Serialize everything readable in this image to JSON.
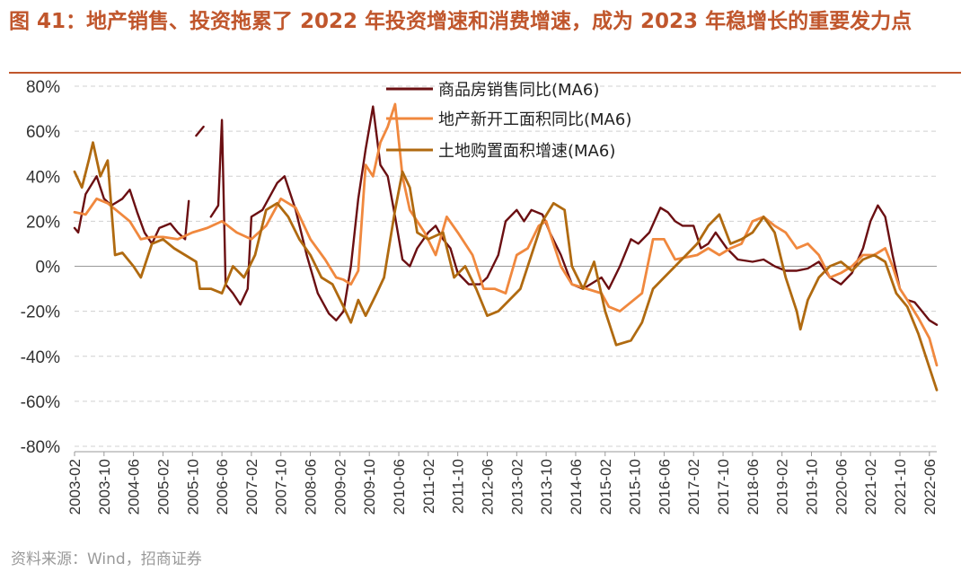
{
  "header": {
    "title": "图 41：地产销售、投资拖累了 2022 年投资增速和消费增速，成为 2023 年稳增长的重要发力点"
  },
  "footer": {
    "source": "资料来源：Wind，招商证券"
  },
  "colors": {
    "title": "#c0562c",
    "grid": "#d0d0d0",
    "axis": "#999999"
  },
  "chart_data": {
    "type": "line",
    "title": "地产销售、投资拖累了 2022 年投资增速和消费增速，成为 2023 年稳增长的重要发力点",
    "xlabel": "",
    "ylabel": "",
    "ylim": [
      -80,
      80
    ],
    "yticks": [
      80,
      60,
      40,
      20,
      0,
      -20,
      -40,
      -60,
      -80
    ],
    "ytick_labels": [
      "80%",
      "60%",
      "40%",
      "20%",
      "0%",
      "-20%",
      "-40%",
      "-60%",
      "-80%"
    ],
    "x_start": "2003-02",
    "x_end": "2022-08",
    "x_tick_labels": [
      "2003-02",
      "2003-10",
      "2004-06",
      "2005-02",
      "2005-10",
      "2006-06",
      "2007-02",
      "2007-10",
      "2008-06",
      "2009-02",
      "2009-10",
      "2010-06",
      "2011-02",
      "2011-10",
      "2012-06",
      "2013-02",
      "2013-10",
      "2014-06",
      "2015-02",
      "2015-10",
      "2016-06",
      "2017-02",
      "2017-10",
      "2018-06",
      "2019-02",
      "2019-10",
      "2020-06",
      "2021-02",
      "2021-10",
      "2022-06"
    ],
    "grid": true,
    "legend": "top-center",
    "series": [
      {
        "name": "商品房销售同比(MA6)",
        "color": "#6b0f12",
        "points": [
          [
            "2003-02",
            17
          ],
          [
            "2003-03",
            15
          ],
          [
            "2003-05",
            32
          ],
          [
            "2003-08",
            40
          ],
          [
            "2003-10",
            30
          ],
          [
            "2003-12",
            27
          ],
          [
            "2004-03",
            30
          ],
          [
            "2004-05",
            34
          ],
          [
            "2004-07",
            24
          ],
          [
            "2004-09",
            15
          ],
          [
            "2004-11",
            10
          ],
          [
            "2005-01",
            17
          ],
          [
            "2005-04",
            19
          ],
          [
            "2005-06",
            15
          ],
          [
            "2005-08",
            12
          ],
          [
            "2005-09",
            29
          ],
          [
            null,
            null
          ],
          [
            "2005-11",
            58
          ],
          [
            "2006-01",
            62
          ],
          [
            null,
            null
          ],
          [
            "2006-03",
            22
          ],
          [
            "2006-05",
            27
          ],
          [
            "2006-06",
            65
          ],
          [
            "2006-07",
            -8
          ],
          [
            "2006-09",
            -12
          ],
          [
            "2006-11",
            -17
          ],
          [
            "2007-01",
            -10
          ],
          [
            "2007-02",
            22
          ],
          [
            "2007-05",
            25
          ],
          [
            "2007-09",
            37
          ],
          [
            "2007-11",
            40
          ],
          [
            "2008-02",
            25
          ],
          [
            "2008-05",
            5
          ],
          [
            "2008-08",
            -12
          ],
          [
            "2008-11",
            -21
          ],
          [
            "2009-01",
            -24
          ],
          [
            "2009-03",
            -20
          ],
          [
            "2009-05",
            0
          ],
          [
            "2009-07",
            30
          ],
          [
            "2009-09",
            52
          ],
          [
            "2009-11",
            71
          ],
          [
            "2010-01",
            45
          ],
          [
            "2010-03",
            40
          ],
          [
            "2010-05",
            22
          ],
          [
            "2010-07",
            3
          ],
          [
            "2010-09",
            0
          ],
          [
            "2010-11",
            8
          ],
          [
            "2011-02",
            15
          ],
          [
            "2011-04",
            18
          ],
          [
            "2011-06",
            12
          ],
          [
            "2011-08",
            8
          ],
          [
            "2011-10",
            -3
          ],
          [
            "2012-01",
            -8
          ],
          [
            "2012-04",
            -8
          ],
          [
            "2012-06",
            -5
          ],
          [
            "2012-09",
            5
          ],
          [
            "2012-11",
            20
          ],
          [
            "2013-02",
            25
          ],
          [
            "2013-04",
            20
          ],
          [
            "2013-06",
            25
          ],
          [
            "2013-09",
            23
          ],
          [
            "2013-11",
            15
          ],
          [
            "2014-02",
            5
          ],
          [
            "2014-05",
            -8
          ],
          [
            "2014-08",
            -10
          ],
          [
            "2015-01",
            -5
          ],
          [
            "2015-03",
            -10
          ],
          [
            "2015-06",
            0
          ],
          [
            "2015-09",
            12
          ],
          [
            "2015-11",
            10
          ],
          [
            "2016-02",
            15
          ],
          [
            "2016-05",
            26
          ],
          [
            "2016-07",
            24
          ],
          [
            "2016-09",
            20
          ],
          [
            "2016-11",
            18
          ],
          [
            "2017-02",
            18
          ],
          [
            "2017-04",
            8
          ],
          [
            "2017-06",
            10
          ],
          [
            "2017-08",
            15
          ],
          [
            "2017-11",
            8
          ],
          [
            "2018-02",
            3
          ],
          [
            "2018-06",
            2
          ],
          [
            "2018-09",
            3
          ],
          [
            "2018-12",
            0
          ],
          [
            "2019-03",
            -2
          ],
          [
            "2019-06",
            -2
          ],
          [
            "2019-09",
            -1
          ],
          [
            "2019-12",
            2
          ],
          [
            "2020-03",
            -5
          ],
          [
            "2020-06",
            -8
          ],
          [
            "2020-09",
            -3
          ],
          [
            "2020-12",
            8
          ],
          [
            "2021-02",
            20
          ],
          [
            "2021-04",
            27
          ],
          [
            "2021-06",
            22
          ],
          [
            "2021-08",
            5
          ],
          [
            "2021-10",
            -10
          ],
          [
            "2021-12",
            -15
          ],
          [
            "2022-02",
            -16
          ],
          [
            "2022-04",
            -20
          ],
          [
            "2022-06",
            -24
          ],
          [
            "2022-08",
            -26
          ]
        ]
      },
      {
        "name": "地产新开工面积同比(MA6)",
        "color": "#f0883e",
        "points": [
          [
            "2003-02",
            24
          ],
          [
            "2003-05",
            23
          ],
          [
            "2003-08",
            30
          ],
          [
            "2003-11",
            28
          ],
          [
            "2004-02",
            24
          ],
          [
            "2004-05",
            20
          ],
          [
            "2004-08",
            12
          ],
          [
            "2004-11",
            13
          ],
          [
            "2005-02",
            13
          ],
          [
            "2005-06",
            12
          ],
          [
            "2005-10",
            15
          ],
          [
            "2006-02",
            17
          ],
          [
            "2006-06",
            20
          ],
          [
            "2006-10",
            15
          ],
          [
            "2007-02",
            12
          ],
          [
            "2007-06",
            18
          ],
          [
            "2007-10",
            30
          ],
          [
            "2008-02",
            26
          ],
          [
            "2008-06",
            12
          ],
          [
            "2008-10",
            3
          ],
          [
            "2009-01",
            -5
          ],
          [
            "2009-03",
            -6
          ],
          [
            "2009-05",
            -8
          ],
          [
            "2009-07",
            -2
          ],
          [
            "2009-09",
            45
          ],
          [
            "2009-11",
            40
          ],
          [
            "2010-01",
            55
          ],
          [
            "2010-03",
            62
          ],
          [
            "2010-05",
            72
          ],
          [
            "2010-07",
            40
          ],
          [
            "2010-09",
            25
          ],
          [
            "2011-01",
            15
          ],
          [
            "2011-04",
            5
          ],
          [
            "2011-07",
            22
          ],
          [
            "2011-10",
            15
          ],
          [
            "2012-02",
            5
          ],
          [
            "2012-05",
            -10
          ],
          [
            "2012-08",
            -10
          ],
          [
            "2012-11",
            -12
          ],
          [
            "2013-02",
            5
          ],
          [
            "2013-05",
            8
          ],
          [
            "2013-08",
            18
          ],
          [
            "2013-10",
            20
          ],
          [
            "2014-02",
            0
          ],
          [
            "2014-05",
            -8
          ],
          [
            "2014-09",
            -10
          ],
          [
            "2015-01",
            -12
          ],
          [
            "2015-03",
            -18
          ],
          [
            "2015-06",
            -20
          ],
          [
            "2015-09",
            -16
          ],
          [
            "2015-12",
            -12
          ],
          [
            "2016-03",
            12
          ],
          [
            "2016-06",
            12
          ],
          [
            "2016-09",
            3
          ],
          [
            "2016-12",
            4
          ],
          [
            "2017-03",
            5
          ],
          [
            "2017-06",
            8
          ],
          [
            "2017-09",
            5
          ],
          [
            "2017-12",
            8
          ],
          [
            "2018-03",
            10
          ],
          [
            "2018-06",
            20
          ],
          [
            "2018-09",
            22
          ],
          [
            "2018-12",
            18
          ],
          [
            "2019-03",
            15
          ],
          [
            "2019-06",
            8
          ],
          [
            "2019-09",
            10
          ],
          [
            "2019-12",
            5
          ],
          [
            "2020-03",
            -5
          ],
          [
            "2020-06",
            -3
          ],
          [
            "2020-09",
            0
          ],
          [
            "2020-12",
            5
          ],
          [
            "2021-03",
            5
          ],
          [
            "2021-06",
            8
          ],
          [
            "2021-08",
            0
          ],
          [
            "2021-10",
            -10
          ],
          [
            "2021-12",
            -15
          ],
          [
            "2022-03",
            -23
          ],
          [
            "2022-06",
            -32
          ],
          [
            "2022-08",
            -44
          ]
        ]
      },
      {
        "name": "土地购置面积增速(MA6)",
        "color": "#b06a10",
        "points": [
          [
            "2003-02",
            42
          ],
          [
            "2003-04",
            35
          ],
          [
            "2003-06",
            48
          ],
          [
            "2003-07",
            55
          ],
          [
            "2003-09",
            40
          ],
          [
            "2003-11",
            47
          ],
          [
            "2004-01",
            5
          ],
          [
            "2004-03",
            6
          ],
          [
            "2004-06",
            0
          ],
          [
            "2004-08",
            -5
          ],
          [
            "2004-11",
            10
          ],
          [
            "2005-02",
            12
          ],
          [
            "2005-05",
            8
          ],
          [
            "2005-08",
            5
          ],
          [
            "2005-11",
            2
          ],
          [
            "2005-12",
            -10
          ],
          [
            "2006-03",
            -10
          ],
          [
            "2006-06",
            -12
          ],
          [
            "2006-09",
            0
          ],
          [
            "2006-12",
            -5
          ],
          [
            "2007-03",
            5
          ],
          [
            "2007-06",
            25
          ],
          [
            "2007-09",
            28
          ],
          [
            "2007-12",
            22
          ],
          [
            "2008-03",
            12
          ],
          [
            "2008-06",
            5
          ],
          [
            "2008-09",
            -5
          ],
          [
            "2008-12",
            -8
          ],
          [
            "2009-03",
            -18
          ],
          [
            "2009-05",
            -25
          ],
          [
            "2009-07",
            -15
          ],
          [
            "2009-09",
            -22
          ],
          [
            "2009-12",
            -12
          ],
          [
            "2010-02",
            -5
          ],
          [
            "2010-05",
            25
          ],
          [
            "2010-07",
            42
          ],
          [
            "2010-09",
            35
          ],
          [
            "2010-11",
            15
          ],
          [
            "2011-02",
            12
          ],
          [
            "2011-06",
            15
          ],
          [
            "2011-09",
            -5
          ],
          [
            "2011-12",
            0
          ],
          [
            "2012-03",
            -10
          ],
          [
            "2012-06",
            -22
          ],
          [
            "2012-09",
            -20
          ],
          [
            "2012-12",
            -15
          ],
          [
            "2013-03",
            -10
          ],
          [
            "2013-06",
            5
          ],
          [
            "2013-09",
            20
          ],
          [
            "2013-12",
            28
          ],
          [
            "2014-03",
            25
          ],
          [
            "2014-05",
            0
          ],
          [
            "2014-08",
            -10
          ],
          [
            "2014-11",
            2
          ],
          [
            "2015-02",
            -20
          ],
          [
            "2015-05",
            -35
          ],
          [
            "2015-09",
            -33
          ],
          [
            "2015-12",
            -25
          ],
          [
            "2016-03",
            -10
          ],
          [
            "2016-06",
            -5
          ],
          [
            "2016-09",
            0
          ],
          [
            "2016-12",
            5
          ],
          [
            "2017-03",
            10
          ],
          [
            "2017-06",
            18
          ],
          [
            "2017-09",
            23
          ],
          [
            "2017-12",
            10
          ],
          [
            "2018-03",
            12
          ],
          [
            "2018-06",
            15
          ],
          [
            "2018-09",
            22
          ],
          [
            "2018-12",
            15
          ],
          [
            "2019-03",
            -5
          ],
          [
            "2019-06",
            -20
          ],
          [
            "2019-07",
            -28
          ],
          [
            "2019-09",
            -15
          ],
          [
            "2019-12",
            -5
          ],
          [
            "2020-03",
            0
          ],
          [
            "2020-06",
            2
          ],
          [
            "2020-09",
            -2
          ],
          [
            "2020-12",
            3
          ],
          [
            "2021-03",
            5
          ],
          [
            "2021-06",
            2
          ],
          [
            "2021-09",
            -12
          ],
          [
            "2021-12",
            -18
          ],
          [
            "2022-03",
            -30
          ],
          [
            "2022-06",
            -45
          ],
          [
            "2022-08",
            -55
          ]
        ]
      }
    ]
  }
}
